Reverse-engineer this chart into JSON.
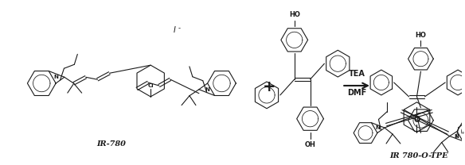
{
  "background_color": "#ffffff",
  "figure_width": 5.84,
  "figure_height": 2.08,
  "dpi": 100,
  "label_ir780": "IR-780",
  "label_product": "IR 780-O-TPE",
  "reagent1": "TEA",
  "reagent2": "DMF",
  "text_color": "#1a1a1a",
  "line_color": "#1a1a1a",
  "bond_lw": 0.8
}
